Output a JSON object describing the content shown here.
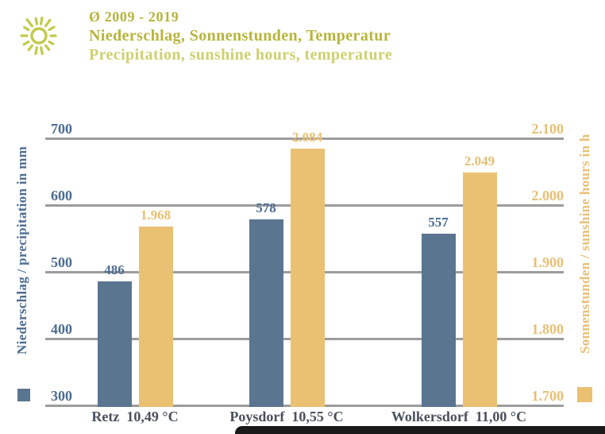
{
  "header": {
    "icon": "sun-icon",
    "period": "Ø 2009 - 2019",
    "title_de": "Niederschlag, Sonnenstunden, Temperatur",
    "title_en": "Precipitation, sunshine hours, temperature"
  },
  "colors": {
    "olive": "#b7b43c",
    "olive_light": "#ced06f",
    "sun": "#c2ca4a",
    "blue_bar": "#5a7590",
    "blue_text": "#4d6c92",
    "gold_bar": "#eac173",
    "gold_text": "#e8bf74",
    "gridline": "#9c9c9c",
    "category_text": "#4a515c",
    "bottom_bar": "#1a1a1a"
  },
  "chart_data": {
    "type": "bar",
    "title": "Ø 2009 - 2019 | Niederschlag, Sonnenstunden, Temperatur | Precipitation, sunshine hours, temperature",
    "categories": [
      "Retz",
      "Poysdorf",
      "Wolkersdorf"
    ],
    "category_temperatures": [
      "10,49 °C",
      "10,55 °C",
      "11,00 °C"
    ],
    "series": [
      {
        "name": "Niederschlag / precipitation in mm",
        "axis": "left",
        "color_key": "blue",
        "values": [
          486,
          578,
          557
        ],
        "value_labels": [
          "486",
          "578",
          "557"
        ]
      },
      {
        "name": "Sonnenstunden / sunshine hours in h",
        "axis": "right",
        "color_key": "gold",
        "values": [
          1968,
          2084,
          2049
        ],
        "value_labels": [
          "1.968",
          "2.084",
          "2.049"
        ]
      }
    ],
    "left_axis": {
      "title": "Niederschlag / precipitation in mm",
      "min": 300,
      "max": 700,
      "tick_labels": [
        "700",
        "600",
        "500",
        "400",
        "300"
      ]
    },
    "right_axis": {
      "title": "Sonnenstunden / sunshine hours in h",
      "min": 1700,
      "max": 2100,
      "tick_labels": [
        "2.100",
        "2.000",
        "1.900",
        "1.800",
        "1.700"
      ]
    },
    "grid": true,
    "legend_position": "rotated axis titles with color swatches"
  }
}
